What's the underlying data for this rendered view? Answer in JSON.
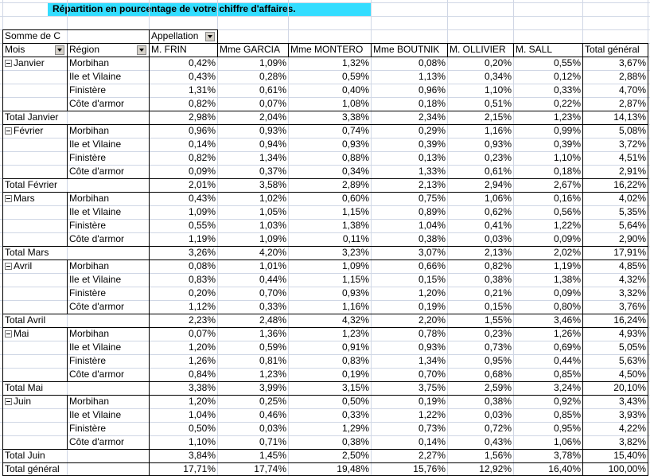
{
  "title": "Répartition en pourcentage de votre chiffre d'affaires.",
  "corner": "Somme de C",
  "column_field": "Appellation",
  "headers": [
    "Mois",
    "Région",
    "M. FRIN",
    "Mme GARCIA",
    "Mme MONTERO",
    "Mme BOUTNIK",
    "M. OLLIVIER",
    "M. SALL",
    "Total général"
  ],
  "months": [
    {
      "name": "Janvier",
      "rows": [
        {
          "region": "Morbihan",
          "values": [
            "0,42%",
            "1,09%",
            "1,32%",
            "0,08%",
            "0,20%",
            "0,55%",
            "3,67%"
          ]
        },
        {
          "region": "Ile et Vilaine",
          "values": [
            "0,43%",
            "0,28%",
            "0,59%",
            "1,13%",
            "0,34%",
            "0,12%",
            "2,88%"
          ]
        },
        {
          "region": "Finistère",
          "values": [
            "1,31%",
            "0,61%",
            "0,40%",
            "0,96%",
            "1,10%",
            "0,33%",
            "4,70%"
          ]
        },
        {
          "region": "Côte d'armor",
          "values": [
            "0,82%",
            "0,07%",
            "1,08%",
            "0,18%",
            "0,51%",
            "0,22%",
            "2,87%"
          ]
        }
      ],
      "total_label": "Total Janvier",
      "total_values": [
        "2,98%",
        "2,04%",
        "3,38%",
        "2,34%",
        "2,15%",
        "1,23%",
        "14,13%"
      ]
    },
    {
      "name": "Février",
      "rows": [
        {
          "region": "Morbihan",
          "values": [
            "0,96%",
            "0,93%",
            "0,74%",
            "0,29%",
            "1,16%",
            "0,99%",
            "5,08%"
          ]
        },
        {
          "region": "Ile et Vilaine",
          "values": [
            "0,14%",
            "0,94%",
            "0,93%",
            "0,39%",
            "0,93%",
            "0,39%",
            "3,72%"
          ]
        },
        {
          "region": "Finistère",
          "values": [
            "0,82%",
            "1,34%",
            "0,88%",
            "0,13%",
            "0,23%",
            "1,10%",
            "4,51%"
          ]
        },
        {
          "region": "Côte d'armor",
          "values": [
            "0,09%",
            "0,37%",
            "0,34%",
            "1,33%",
            "0,61%",
            "0,18%",
            "2,91%"
          ]
        }
      ],
      "total_label": "Total Février",
      "total_values": [
        "2,01%",
        "3,58%",
        "2,89%",
        "2,13%",
        "2,94%",
        "2,67%",
        "16,22%"
      ]
    },
    {
      "name": "Mars",
      "rows": [
        {
          "region": "Morbihan",
          "values": [
            "0,43%",
            "1,02%",
            "0,60%",
            "0,75%",
            "1,06%",
            "0,16%",
            "4,02%"
          ]
        },
        {
          "region": "Ile et Vilaine",
          "values": [
            "1,09%",
            "1,05%",
            "1,15%",
            "0,89%",
            "0,62%",
            "0,56%",
            "5,35%"
          ]
        },
        {
          "region": "Finistère",
          "values": [
            "0,55%",
            "1,03%",
            "1,38%",
            "1,04%",
            "0,41%",
            "1,22%",
            "5,64%"
          ]
        },
        {
          "region": "Côte d'armor",
          "values": [
            "1,19%",
            "1,09%",
            "0,11%",
            "0,38%",
            "0,03%",
            "0,09%",
            "2,90%"
          ]
        }
      ],
      "total_label": "Total Mars",
      "total_values": [
        "3,26%",
        "4,20%",
        "3,23%",
        "3,07%",
        "2,13%",
        "2,02%",
        "17,91%"
      ]
    },
    {
      "name": "Avril",
      "rows": [
        {
          "region": "Morbihan",
          "values": [
            "0,08%",
            "1,01%",
            "1,09%",
            "0,66%",
            "0,82%",
            "1,19%",
            "4,85%"
          ]
        },
        {
          "region": "Ile et Vilaine",
          "values": [
            "0,83%",
            "0,44%",
            "1,15%",
            "0,15%",
            "0,38%",
            "1,38%",
            "4,32%"
          ]
        },
        {
          "region": "Finistère",
          "values": [
            "0,20%",
            "0,70%",
            "0,93%",
            "1,20%",
            "0,21%",
            "0,09%",
            "3,32%"
          ]
        },
        {
          "region": "Côte d'armor",
          "values": [
            "1,12%",
            "0,33%",
            "1,16%",
            "0,19%",
            "0,15%",
            "0,80%",
            "3,76%"
          ]
        }
      ],
      "total_label": "Total Avril",
      "total_values": [
        "2,23%",
        "2,48%",
        "4,32%",
        "2,20%",
        "1,55%",
        "3,46%",
        "16,24%"
      ]
    },
    {
      "name": "Mai",
      "rows": [
        {
          "region": "Morbihan",
          "values": [
            "0,07%",
            "1,36%",
            "1,23%",
            "0,78%",
            "0,23%",
            "1,26%",
            "4,93%"
          ]
        },
        {
          "region": "Ile et Vilaine",
          "values": [
            "1,20%",
            "0,59%",
            "0,91%",
            "0,93%",
            "0,73%",
            "0,69%",
            "5,05%"
          ]
        },
        {
          "region": "Finistère",
          "values": [
            "1,26%",
            "0,81%",
            "0,83%",
            "1,34%",
            "0,95%",
            "0,44%",
            "5,63%"
          ]
        },
        {
          "region": "Côte d'armor",
          "values": [
            "0,84%",
            "1,23%",
            "0,19%",
            "0,70%",
            "0,68%",
            "0,85%",
            "4,50%"
          ]
        }
      ],
      "total_label": "Total Mai",
      "total_values": [
        "3,38%",
        "3,99%",
        "3,15%",
        "3,75%",
        "2,59%",
        "3,24%",
        "20,10%"
      ]
    },
    {
      "name": "Juin",
      "rows": [
        {
          "region": "Morbihan",
          "values": [
            "1,20%",
            "0,25%",
            "0,50%",
            "0,19%",
            "0,38%",
            "0,92%",
            "3,43%"
          ]
        },
        {
          "region": "Ile et Vilaine",
          "values": [
            "1,04%",
            "0,46%",
            "0,33%",
            "1,22%",
            "0,03%",
            "0,85%",
            "3,93%"
          ]
        },
        {
          "region": "Finistère",
          "values": [
            "0,50%",
            "0,03%",
            "1,29%",
            "0,73%",
            "0,72%",
            "0,95%",
            "4,22%"
          ]
        },
        {
          "region": "Côte d'armor",
          "values": [
            "1,10%",
            "0,71%",
            "0,38%",
            "0,14%",
            "0,43%",
            "1,06%",
            "3,82%"
          ]
        }
      ],
      "total_label": "Total Juin",
      "total_values": [
        "3,84%",
        "1,45%",
        "2,50%",
        "2,27%",
        "1,56%",
        "3,78%",
        "15,40%"
      ]
    }
  ],
  "grand_total": {
    "label": "Total général",
    "values": [
      "17,71%",
      "17,74%",
      "19,48%",
      "15,76%",
      "12,92%",
      "16,40%",
      "100,00%"
    ]
  }
}
